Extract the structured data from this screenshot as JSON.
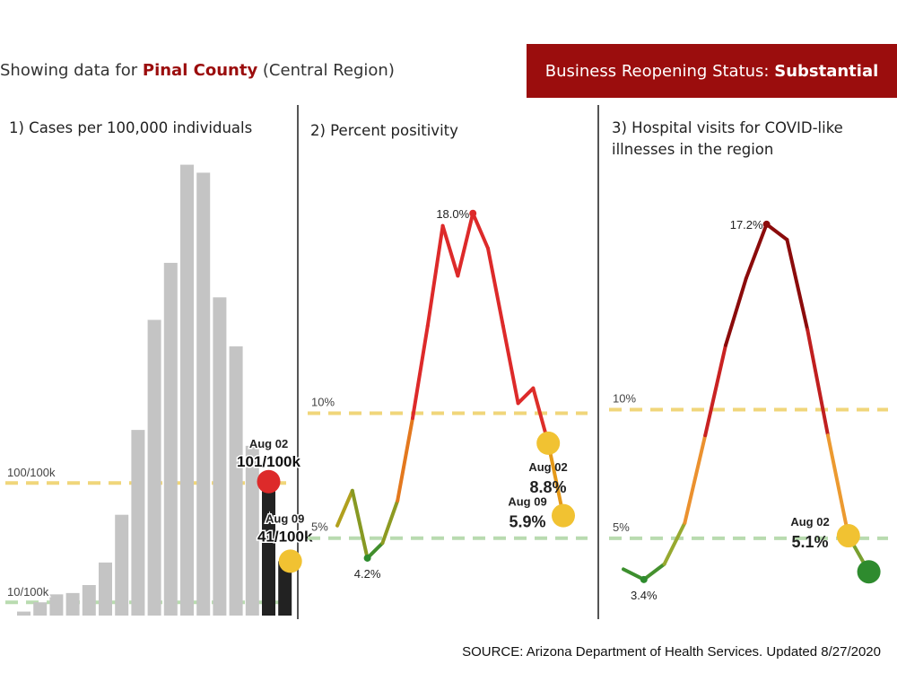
{
  "header": {
    "showing_prefix": "Showing data for ",
    "county": "Pinal County",
    "region": " (Central Region)",
    "status_label": "Business Reopening Status: ",
    "status_value": "Substantial"
  },
  "colors": {
    "banner": "#9b0d0d",
    "red": "#dd2a2a",
    "dark_red": "#8b0b0b",
    "yellow": "#f1c232",
    "orange": "#e6a817",
    "green": "#2e8b2e",
    "threshold_yellow": "#f0d67a",
    "threshold_green": "#b9dbb0",
    "bar_gray": "#c4c4c4",
    "bar_dark": "#222222"
  },
  "chart_data": [
    {
      "type": "bar",
      "title": "1) Cases per 100,000 individuals",
      "values": [
        3,
        10,
        16,
        17,
        23,
        40,
        76,
        140,
        223,
        266,
        340,
        334,
        240,
        203,
        128,
        101,
        41
      ],
      "highlight_from_index": 15,
      "ylim": [
        0,
        350
      ],
      "thresholds": [
        {
          "value": 100,
          "label": "100/100k",
          "color": "yellow"
        },
        {
          "value": 10,
          "label": "10/100k",
          "color": "green"
        }
      ],
      "annotations": [
        {
          "index": 15,
          "date": "Aug 02",
          "text": "101/100k",
          "marker": "red"
        },
        {
          "index": 16,
          "date": "Aug 09",
          "text": "41/100k",
          "marker": "yellow"
        }
      ]
    },
    {
      "type": "line",
      "title": "2) Percent positivity",
      "values": [
        5.5,
        6.9,
        4.2,
        4.8,
        6.5,
        9.8,
        13.5,
        17.5,
        15.5,
        18.0,
        16.6,
        13.5,
        10.4,
        11.0,
        8.8,
        5.9
      ],
      "ylim": [
        1.9,
        19.5
      ],
      "thresholds": [
        {
          "value": 10,
          "label": "10%",
          "color": "yellow"
        },
        {
          "value": 5,
          "label": "5%",
          "color": "green"
        }
      ],
      "point_labels": [
        {
          "index": 2,
          "text": "4.2%"
        },
        {
          "index": 9,
          "text": "18.0%"
        }
      ],
      "annotations": [
        {
          "index": 14,
          "date": "Aug 02",
          "text": "8.8%",
          "marker": "yellow"
        },
        {
          "index": 15,
          "date": "Aug 09",
          "text": "5.9%",
          "marker": "yellow"
        }
      ]
    },
    {
      "type": "line",
      "title": "3) Hospital visits for COVID-like illnesses in the region",
      "title_line1": "3) Hospital visits for COVID-like",
      "title_line2": "illnesses in the region",
      "values": [
        3.8,
        3.4,
        4.0,
        5.6,
        9.0,
        12.5,
        15.1,
        17.2,
        16.6,
        13.1,
        9.0,
        5.1,
        3.7
      ],
      "ylim": [
        2.0,
        18.8
      ],
      "thresholds": [
        {
          "value": 10,
          "label": "10%",
          "color": "yellow"
        },
        {
          "value": 5,
          "label": "5%",
          "color": "green"
        }
      ],
      "point_labels": [
        {
          "index": 1,
          "text": "3.4%"
        },
        {
          "index": 7,
          "text": "17.2%"
        }
      ],
      "annotations": [
        {
          "index": 11,
          "date": "Aug 02",
          "text": "5.1%",
          "marker": "yellow"
        },
        {
          "index": 12,
          "date": "",
          "text": "",
          "marker": "green"
        }
      ]
    }
  ],
  "source": "SOURCE: Arizona Department of Health Services. Updated 8/27/2020"
}
